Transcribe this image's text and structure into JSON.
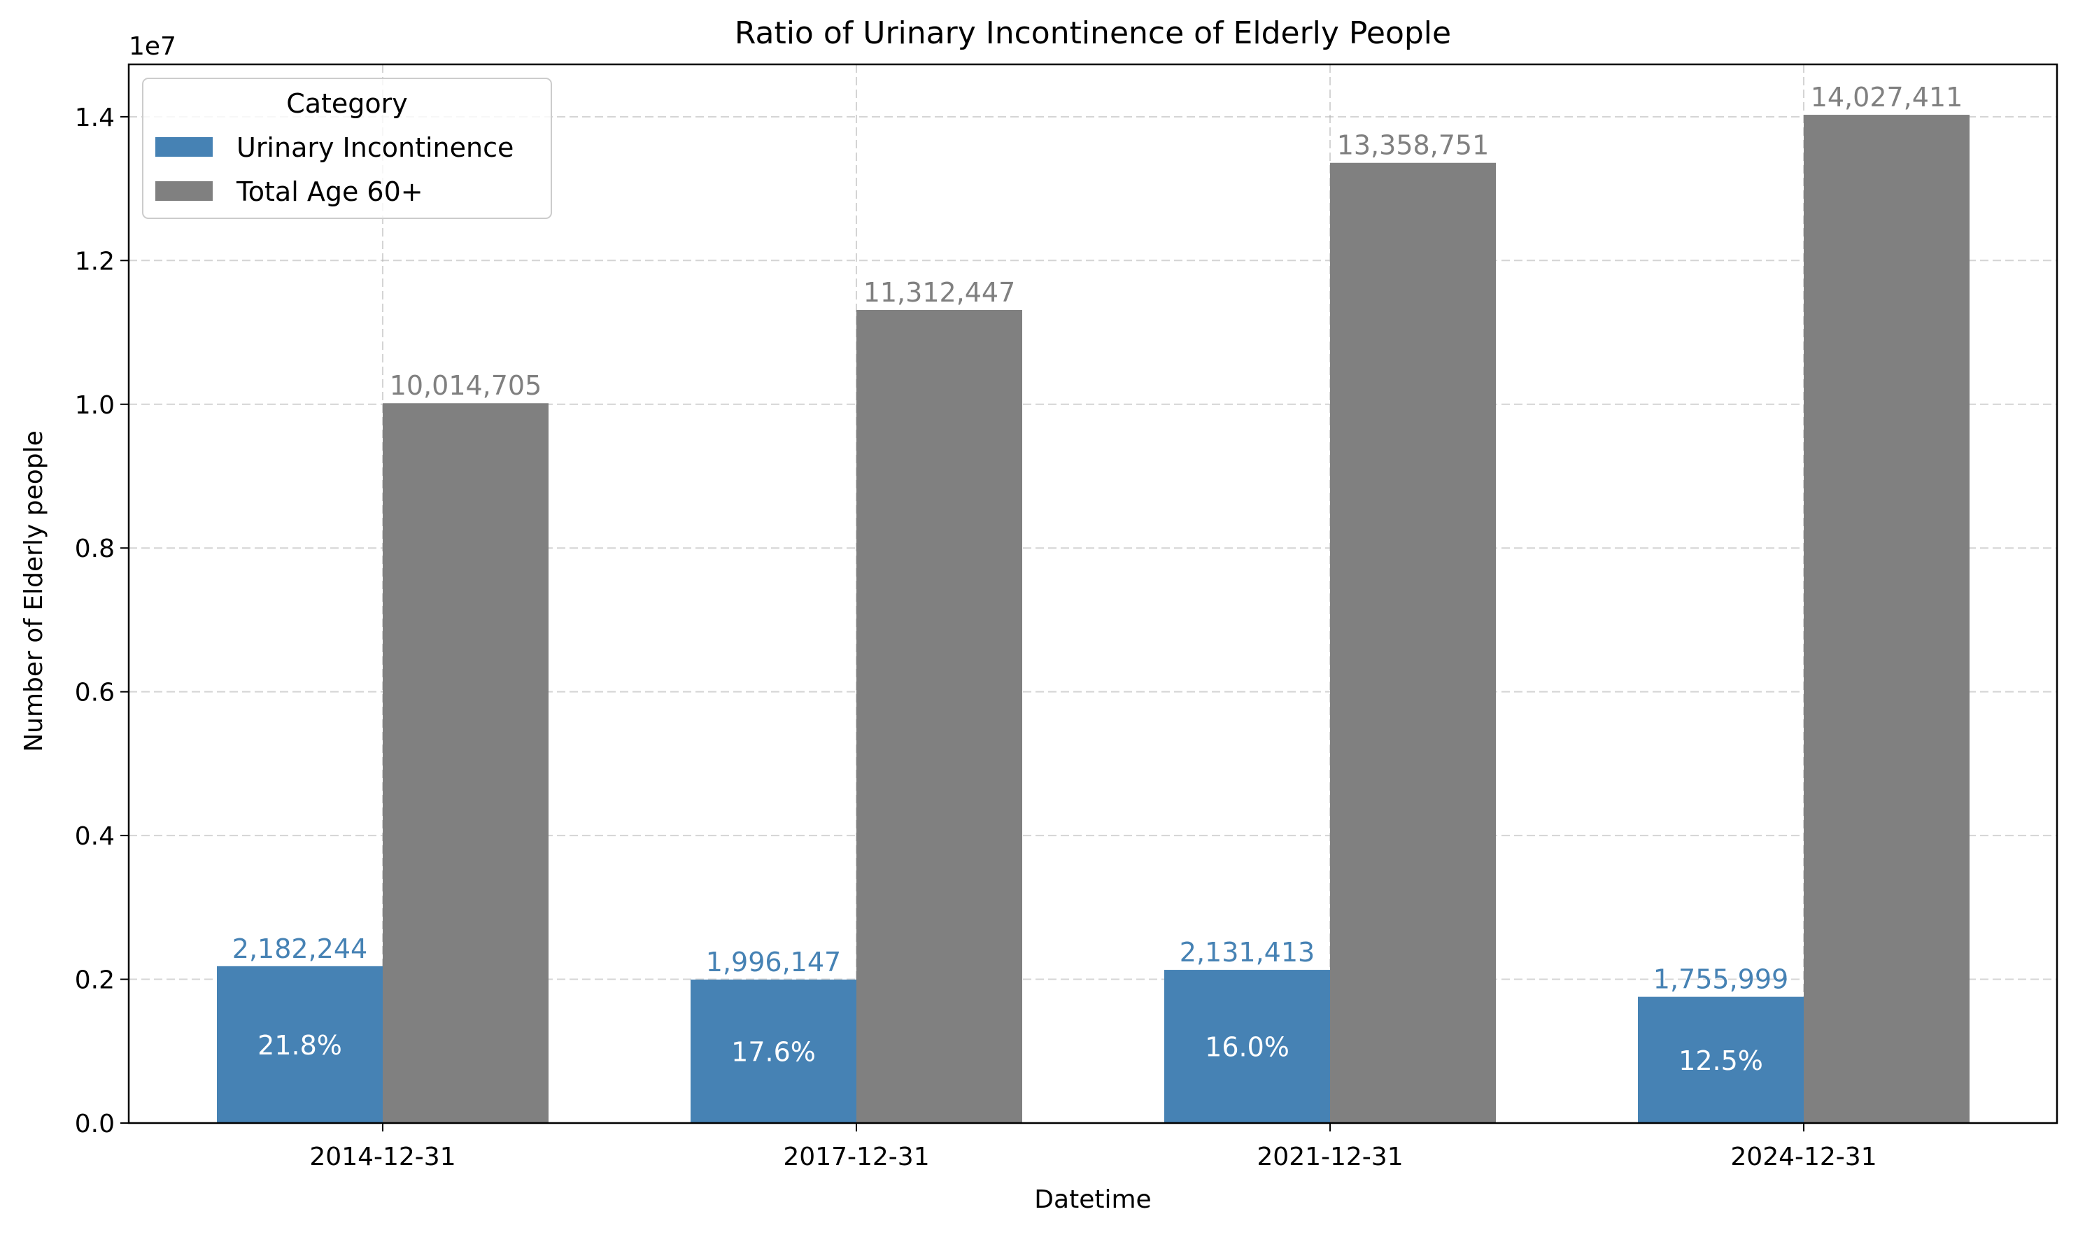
{
  "chart_data": {
    "type": "bar",
    "title": "Ratio of Urinary Incontinence of Elderly People",
    "xlabel": "Datetime",
    "ylabel": "Number of Elderly people",
    "offset_text": "1e7",
    "categories": [
      "2014-12-31",
      "2017-12-31",
      "2021-12-31",
      "2024-12-31"
    ],
    "series": [
      {
        "name": "Urinary Incontinence",
        "color": "#4682b4",
        "values": [
          2182244,
          1996147,
          2131413,
          1755999
        ],
        "labels": [
          "2,182,244",
          "1,996,147",
          "2,131,413",
          "1,755,999"
        ],
        "ratio_labels": [
          "21.8%",
          "17.6%",
          "16.0%",
          "12.5%"
        ]
      },
      {
        "name": "Total Age 60+",
        "color": "#808080",
        "values": [
          10014705,
          11312447,
          13358751,
          14027411
        ],
        "labels": [
          "10,014,705",
          "11,312,447",
          "13,358,751",
          "14,027,411"
        ]
      }
    ],
    "ylim": [
      0,
      14728781
    ],
    "yticks": [
      0,
      2000000,
      4000000,
      6000000,
      8000000,
      10000000,
      12000000,
      14000000
    ],
    "ytick_labels": [
      "0.0",
      "0.2",
      "0.4",
      "0.6",
      "0.8",
      "1.0",
      "1.2",
      "1.4"
    ],
    "grid": true,
    "legend": {
      "title": "Category",
      "placement": "top-left"
    }
  }
}
